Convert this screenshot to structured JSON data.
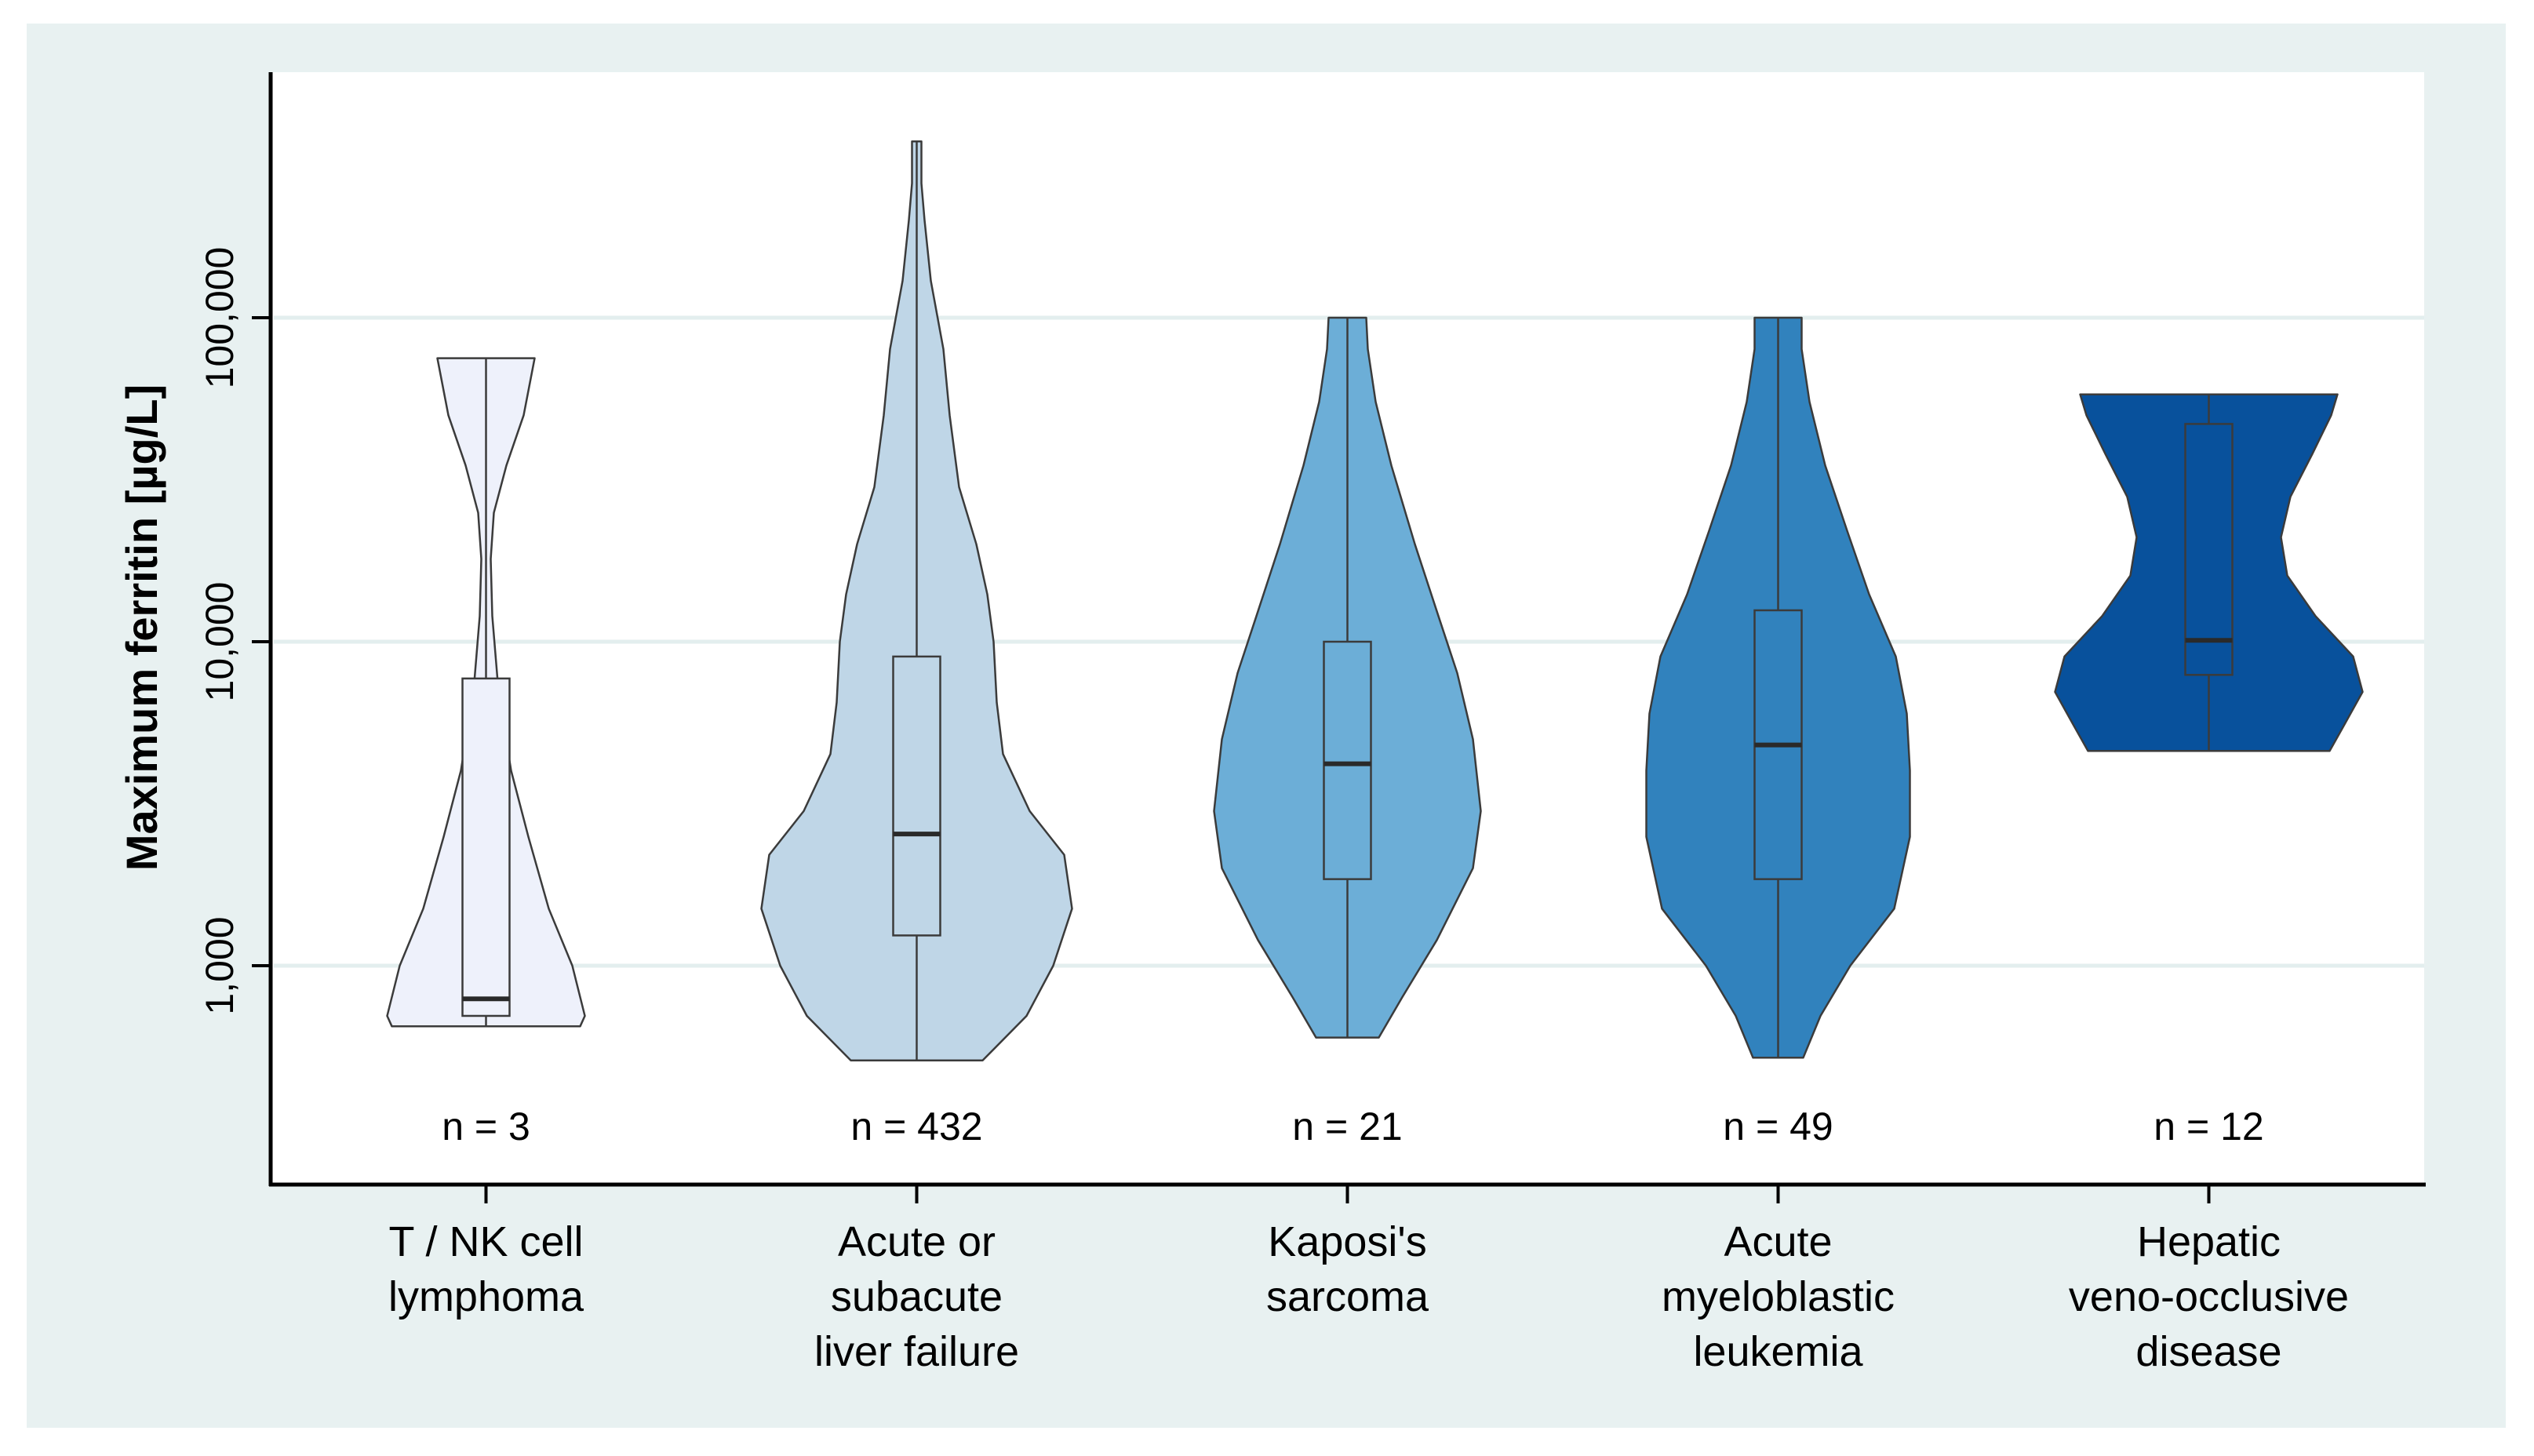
{
  "chart_data": {
    "type": "violin",
    "ylabel": "Maximum ferritin [µg/L]",
    "yscale": "log",
    "yticks": [
      1000,
      10000,
      100000
    ],
    "ytick_labels": [
      "1,000",
      "10,000",
      "100,000"
    ],
    "ylim": [
      250,
      1000000
    ],
    "grid": true,
    "legend": "none",
    "groups": [
      {
        "category": "T / NK cell lymphoma",
        "n_label": "n = 3",
        "color": "#eef1fb",
        "min": 650,
        "max": 75000,
        "q1": 700,
        "median": 790,
        "q3": 7700,
        "profile": [
          [
            650,
            0.6
          ],
          [
            700,
            0.63
          ],
          [
            800,
            0.6
          ],
          [
            1000,
            0.55
          ],
          [
            1500,
            0.4
          ],
          [
            2500,
            0.27
          ],
          [
            4000,
            0.16
          ],
          [
            7000,
            0.08
          ],
          [
            12000,
            0.04
          ],
          [
            18000,
            0.03
          ],
          [
            25000,
            0.05
          ],
          [
            35000,
            0.13
          ],
          [
            50000,
            0.24
          ],
          [
            75000,
            0.31
          ]
        ]
      },
      {
        "category": "Acute or subacute liver failure",
        "n_label": "n = 432",
        "color": "#bfd6e7",
        "min": 510,
        "max": 350000,
        "q1": 1240,
        "median": 2550,
        "q3": 9000,
        "profile": [
          [
            510,
            0.42
          ],
          [
            700,
            0.7
          ],
          [
            1000,
            0.87
          ],
          [
            1500,
            0.99
          ],
          [
            2200,
            0.94
          ],
          [
            3000,
            0.72
          ],
          [
            4500,
            0.55
          ],
          [
            6500,
            0.51
          ],
          [
            10000,
            0.49
          ],
          [
            14000,
            0.45
          ],
          [
            20000,
            0.38
          ],
          [
            30000,
            0.27
          ],
          [
            50000,
            0.21
          ],
          [
            80000,
            0.17
          ],
          [
            130000,
            0.09
          ],
          [
            200000,
            0.05
          ],
          [
            260000,
            0.03
          ],
          [
            350000,
            0.03
          ]
        ]
      },
      {
        "category": "Kaposi's sarcoma",
        "n_label": "n = 21",
        "color": "#6caed7",
        "min": 600,
        "max": 100000,
        "q1": 1850,
        "median": 4200,
        "q3": 10000,
        "profile": [
          [
            600,
            0.2
          ],
          [
            800,
            0.35
          ],
          [
            1200,
            0.57
          ],
          [
            2000,
            0.8
          ],
          [
            3000,
            0.85
          ],
          [
            5000,
            0.8
          ],
          [
            8000,
            0.7
          ],
          [
            12000,
            0.58
          ],
          [
            20000,
            0.43
          ],
          [
            35000,
            0.28
          ],
          [
            55000,
            0.18
          ],
          [
            80000,
            0.13
          ],
          [
            100000,
            0.12
          ]
        ]
      },
      {
        "category": "Acute myeloblastic leukemia",
        "n_label": "n = 49",
        "color": "#3182bd",
        "min": 520,
        "max": 100000,
        "q1": 1850,
        "median": 4800,
        "q3": 12500,
        "profile": [
          [
            520,
            0.16
          ],
          [
            700,
            0.27
          ],
          [
            1000,
            0.46
          ],
          [
            1500,
            0.74
          ],
          [
            2500,
            0.84
          ],
          [
            4000,
            0.84
          ],
          [
            6000,
            0.82
          ],
          [
            9000,
            0.75
          ],
          [
            14000,
            0.58
          ],
          [
            22000,
            0.44
          ],
          [
            35000,
            0.3
          ],
          [
            55000,
            0.2
          ],
          [
            80000,
            0.15
          ],
          [
            100000,
            0.15
          ]
        ]
      },
      {
        "category": "Hepatic veno-occlusive disease",
        "n_label": "n = 12",
        "color": "#08519c",
        "min": 4600,
        "max": 58000,
        "q1": 7900,
        "median": 10100,
        "q3": 47000,
        "profile": [
          [
            4600,
            0.77
          ],
          [
            5500,
            0.86
          ],
          [
            7000,
            0.98
          ],
          [
            9000,
            0.92
          ],
          [
            12000,
            0.68
          ],
          [
            16000,
            0.5
          ],
          [
            21000,
            0.46
          ],
          [
            28000,
            0.52
          ],
          [
            38000,
            0.66
          ],
          [
            50000,
            0.78
          ],
          [
            58000,
            0.82
          ]
        ]
      }
    ]
  }
}
